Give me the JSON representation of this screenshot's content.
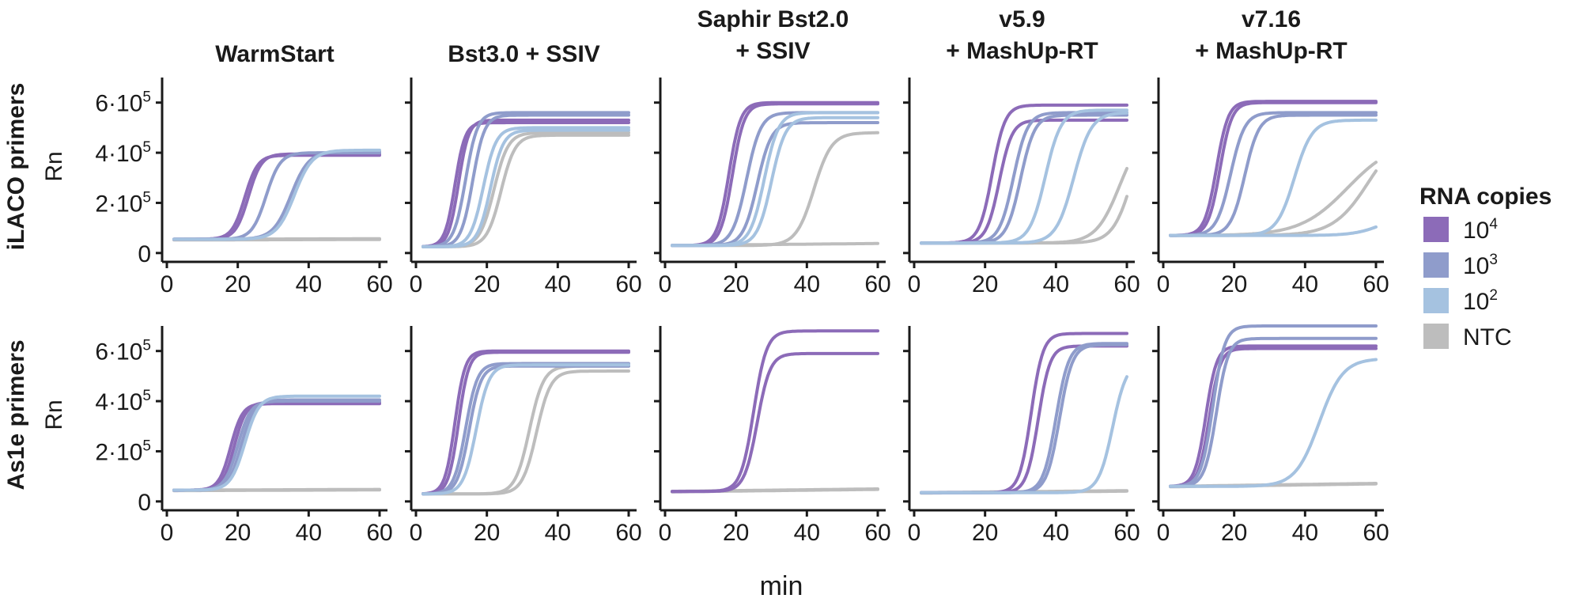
{
  "figure": {
    "row_labels": [
      "iLACO primers",
      "As1e primers"
    ],
    "y_axis_label": "Rn",
    "x_axis_label": "min",
    "legend": {
      "title": "RNA copies",
      "entries": [
        {
          "base": "10",
          "exp": "4",
          "color": "#8c6bb8"
        },
        {
          "base": "10",
          "exp": "3",
          "color": "#8f9ccb"
        },
        {
          "base": "10",
          "exp": "2",
          "color": "#a5c2e0"
        },
        {
          "base": "NTC",
          "exp": "",
          "color": "#bdbdbd"
        }
      ]
    }
  },
  "chart_data": {
    "type": "line",
    "xlim": [
      0,
      60
    ],
    "ylim": [
      -10000,
      700000
    ],
    "x_ticks": [
      0,
      20,
      40,
      60
    ],
    "y_ticks": [
      {
        "value": 0,
        "base": "0",
        "exp": ""
      },
      {
        "value": 200000,
        "base": "2·10",
        "exp": "5"
      },
      {
        "value": 400000,
        "base": "4·10",
        "exp": "5"
      },
      {
        "value": 600000,
        "base": "6·10",
        "exp": "5"
      }
    ],
    "columns": [
      {
        "title": [
          "WarmStart"
        ]
      },
      {
        "title": [
          "Bst3.0 + SSIV"
        ]
      },
      {
        "title": [
          "Saphir Bst2.0",
          "+ SSIV"
        ]
      },
      {
        "title": [
          "v5.9",
          "+ MashUp-RT"
        ]
      },
      {
        "title": [
          "v7.16",
          "+ MashUp-RT"
        ]
      }
    ],
    "panels": [
      {
        "row": 0,
        "col": 0,
        "series": [
          {
            "group": "10^4",
            "baseline": 55000,
            "plateau": 395000,
            "tt": 23,
            "k": 0.55
          },
          {
            "group": "10^4",
            "baseline": 55000,
            "plateau": 390000,
            "tt": 22,
            "k": 0.55
          },
          {
            "group": "10^3",
            "baseline": 55000,
            "plateau": 400000,
            "tt": 28,
            "k": 0.5
          },
          {
            "group": "10^3",
            "baseline": 55000,
            "plateau": 405000,
            "tt": 35,
            "k": 0.4
          },
          {
            "group": "10^2",
            "baseline": 55000,
            "plateau": 410000,
            "tt": 36,
            "k": 0.4
          },
          {
            "group": "NTC",
            "baseline": 55000,
            "drift": 2000
          },
          {
            "group": "NTC",
            "baseline": 52000,
            "drift": 2000
          }
        ]
      },
      {
        "row": 0,
        "col": 1,
        "series": [
          {
            "group": "10^4",
            "baseline": 25000,
            "plateau": 520000,
            "tt": 11,
            "k": 0.7
          },
          {
            "group": "10^4",
            "baseline": 25000,
            "plateau": 530000,
            "tt": 12,
            "k": 0.7
          },
          {
            "group": "10^3",
            "baseline": 25000,
            "plateau": 560000,
            "tt": 14,
            "k": 0.6
          },
          {
            "group": "10^3",
            "baseline": 25000,
            "plateau": 550000,
            "tt": 16,
            "k": 0.6
          },
          {
            "group": "10^2",
            "baseline": 25000,
            "plateau": 500000,
            "tt": 19,
            "k": 0.55
          },
          {
            "group": "10^2",
            "baseline": 25000,
            "plateau": 490000,
            "tt": 21,
            "k": 0.55
          },
          {
            "group": "NTC",
            "baseline": 25000,
            "plateau": 480000,
            "tt": 22,
            "k": 0.5
          },
          {
            "group": "NTC",
            "baseline": 25000,
            "plateau": 470000,
            "tt": 24,
            "k": 0.5
          }
        ]
      },
      {
        "row": 0,
        "col": 2,
        "series": [
          {
            "group": "10^4",
            "baseline": 30000,
            "plateau": 600000,
            "tt": 18,
            "k": 0.6
          },
          {
            "group": "10^4",
            "baseline": 30000,
            "plateau": 595000,
            "tt": 19,
            "k": 0.6
          },
          {
            "group": "10^3",
            "baseline": 30000,
            "plateau": 560000,
            "tt": 23,
            "k": 0.5
          },
          {
            "group": "10^3",
            "baseline": 30000,
            "plateau": 520000,
            "tt": 26,
            "k": 0.5
          },
          {
            "group": "10^2",
            "baseline": 30000,
            "plateau": 560000,
            "tt": 28,
            "k": 0.5
          },
          {
            "group": "10^2",
            "baseline": 30000,
            "plateau": 540000,
            "tt": 30,
            "k": 0.5
          },
          {
            "group": "NTC",
            "baseline": 30000,
            "plateau": 480000,
            "tt": 42,
            "k": 0.4
          },
          {
            "group": "NTC",
            "baseline": 30000,
            "drift": 8000
          }
        ]
      },
      {
        "row": 0,
        "col": 3,
        "series": [
          {
            "group": "10^4",
            "baseline": 40000,
            "plateau": 590000,
            "tt": 22,
            "k": 0.55
          },
          {
            "group": "10^4",
            "baseline": 40000,
            "plateau": 530000,
            "tt": 24,
            "k": 0.55
          },
          {
            "group": "10^3",
            "baseline": 40000,
            "plateau": 560000,
            "tt": 28,
            "k": 0.5
          },
          {
            "group": "10^3",
            "baseline": 40000,
            "plateau": 550000,
            "tt": 30,
            "k": 0.5
          },
          {
            "group": "10^2",
            "baseline": 40000,
            "plateau": 570000,
            "tt": 37,
            "k": 0.45
          },
          {
            "group": "10^2",
            "baseline": 40000,
            "plateau": 560000,
            "tt": 45,
            "k": 0.4
          },
          {
            "group": "NTC",
            "baseline": 40000,
            "plateau": 500000,
            "tt": 58,
            "k": 0.3
          },
          {
            "group": "NTC",
            "baseline": 40000,
            "plateau": 600000,
            "tt": 62,
            "k": 0.35
          }
        ]
      },
      {
        "row": 0,
        "col": 4,
        "series": [
          {
            "group": "10^4",
            "baseline": 70000,
            "plateau": 605000,
            "tt": 15,
            "k": 0.6
          },
          {
            "group": "10^4",
            "baseline": 70000,
            "plateau": 600000,
            "tt": 16,
            "k": 0.6
          },
          {
            "group": "10^3",
            "baseline": 70000,
            "plateau": 560000,
            "tt": 19,
            "k": 0.5
          },
          {
            "group": "10^3",
            "baseline": 70000,
            "plateau": 550000,
            "tt": 23,
            "k": 0.5
          },
          {
            "group": "10^2",
            "baseline": 70000,
            "plateau": 530000,
            "tt": 37,
            "k": 0.4
          },
          {
            "group": "10^2",
            "baseline": 70000,
            "plateau": 160000,
            "tt": 62,
            "k": 0.25
          },
          {
            "group": "NTC",
            "baseline": 70000,
            "plateau": 450000,
            "tt": 52,
            "k": 0.15
          },
          {
            "group": "NTC",
            "baseline": 70000,
            "plateau": 500000,
            "tt": 58,
            "k": 0.2
          }
        ]
      },
      {
        "row": 1,
        "col": 0,
        "series": [
          {
            "group": "10^4",
            "baseline": 45000,
            "plateau": 390000,
            "tt": 18,
            "k": 0.6
          },
          {
            "group": "10^4",
            "baseline": 45000,
            "plateau": 395000,
            "tt": 19,
            "k": 0.6
          },
          {
            "group": "10^3",
            "baseline": 45000,
            "plateau": 400000,
            "tt": 20,
            "k": 0.55
          },
          {
            "group": "10^3",
            "baseline": 45000,
            "plateau": 405000,
            "tt": 21,
            "k": 0.55
          },
          {
            "group": "10^2",
            "baseline": 45000,
            "plateau": 420000,
            "tt": 22,
            "k": 0.5
          },
          {
            "group": "NTC",
            "baseline": 45000,
            "drift": 3000
          },
          {
            "group": "NTC",
            "baseline": 43000,
            "drift": 3000
          }
        ]
      },
      {
        "row": 1,
        "col": 1,
        "series": [
          {
            "group": "10^4",
            "baseline": 30000,
            "plateau": 600000,
            "tt": 11,
            "k": 0.7
          },
          {
            "group": "10^4",
            "baseline": 30000,
            "plateau": 595000,
            "tt": 12,
            "k": 0.7
          },
          {
            "group": "10^3",
            "baseline": 30000,
            "plateau": 550000,
            "tt": 14,
            "k": 0.6
          },
          {
            "group": "10^3",
            "baseline": 30000,
            "plateau": 540000,
            "tt": 15,
            "k": 0.6
          },
          {
            "group": "10^2",
            "baseline": 30000,
            "plateau": 545000,
            "tt": 17,
            "k": 0.55
          },
          {
            "group": "NTC",
            "baseline": 30000,
            "plateau": 540000,
            "tt": 32,
            "k": 0.5
          },
          {
            "group": "NTC",
            "baseline": 30000,
            "plateau": 520000,
            "tt": 34,
            "k": 0.5
          }
        ]
      },
      {
        "row": 1,
        "col": 2,
        "series": [
          {
            "group": "10^4",
            "baseline": 40000,
            "plateau": 680000,
            "tt": 25,
            "k": 0.55
          },
          {
            "group": "10^4",
            "baseline": 40000,
            "plateau": 590000,
            "tt": 26,
            "k": 0.55
          },
          {
            "group": "NTC",
            "baseline": 40000,
            "drift": 10000
          },
          {
            "group": "NTC",
            "baseline": 38000,
            "drift": 10000
          }
        ]
      },
      {
        "row": 1,
        "col": 3,
        "series": [
          {
            "group": "10^4",
            "baseline": 35000,
            "plateau": 670000,
            "tt": 33,
            "k": 0.6
          },
          {
            "group": "10^4",
            "baseline": 35000,
            "plateau": 620000,
            "tt": 35,
            "k": 0.6
          },
          {
            "group": "10^3",
            "baseline": 35000,
            "plateau": 630000,
            "tt": 40,
            "k": 0.55
          },
          {
            "group": "10^3",
            "baseline": 35000,
            "plateau": 625000,
            "tt": 41,
            "k": 0.55
          },
          {
            "group": "10^2",
            "baseline": 35000,
            "plateau": 560000,
            "tt": 56,
            "k": 0.5
          },
          {
            "group": "NTC",
            "baseline": 35000,
            "drift": 8000
          },
          {
            "group": "NTC",
            "baseline": 33000,
            "drift": 8000
          }
        ]
      },
      {
        "row": 1,
        "col": 4,
        "series": [
          {
            "group": "10^4",
            "baseline": 60000,
            "plateau": 620000,
            "tt": 12,
            "k": 0.65
          },
          {
            "group": "10^4",
            "baseline": 60000,
            "plateau": 610000,
            "tt": 13,
            "k": 0.65
          },
          {
            "group": "10^3",
            "baseline": 60000,
            "plateau": 700000,
            "tt": 14,
            "k": 0.6
          },
          {
            "group": "10^3",
            "baseline": 60000,
            "plateau": 650000,
            "tt": 15,
            "k": 0.6
          },
          {
            "group": "10^2",
            "baseline": 60000,
            "plateau": 570000,
            "tt": 44,
            "k": 0.3
          },
          {
            "group": "NTC",
            "baseline": 60000,
            "drift": 12000
          },
          {
            "group": "NTC",
            "baseline": 58000,
            "drift": 12000
          }
        ]
      }
    ]
  }
}
